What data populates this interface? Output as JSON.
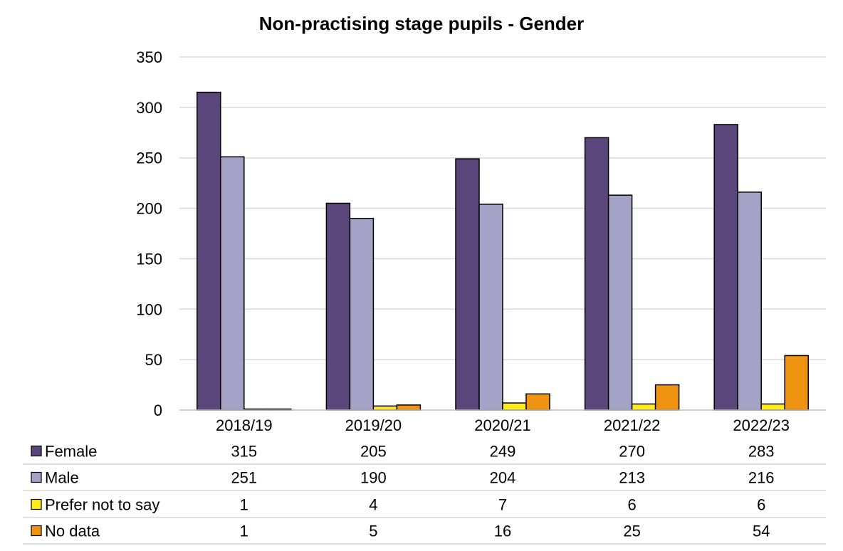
{
  "chart_data": {
    "type": "bar",
    "title": "Non-practising stage pupils - Gender",
    "categories": [
      "2018/19",
      "2019/20",
      "2020/21",
      "2021/22",
      "2022/23"
    ],
    "series": [
      {
        "name": "Female",
        "color": "#5a467a",
        "values": [
          315,
          205,
          249,
          270,
          283
        ]
      },
      {
        "name": "Male",
        "color": "#a4a2c6",
        "values": [
          251,
          190,
          204,
          213,
          216
        ]
      },
      {
        "name": "Prefer not to say",
        "color": "#ffec1a",
        "values": [
          1,
          4,
          7,
          6,
          6
        ]
      },
      {
        "name": "No data",
        "color": "#ef9411",
        "values": [
          1,
          5,
          16,
          25,
          54
        ]
      }
    ],
    "yticks": [
      0,
      50,
      100,
      150,
      200,
      250,
      300,
      350
    ],
    "ylim": [
      0,
      350
    ],
    "grid": true,
    "legend": "data-table"
  }
}
